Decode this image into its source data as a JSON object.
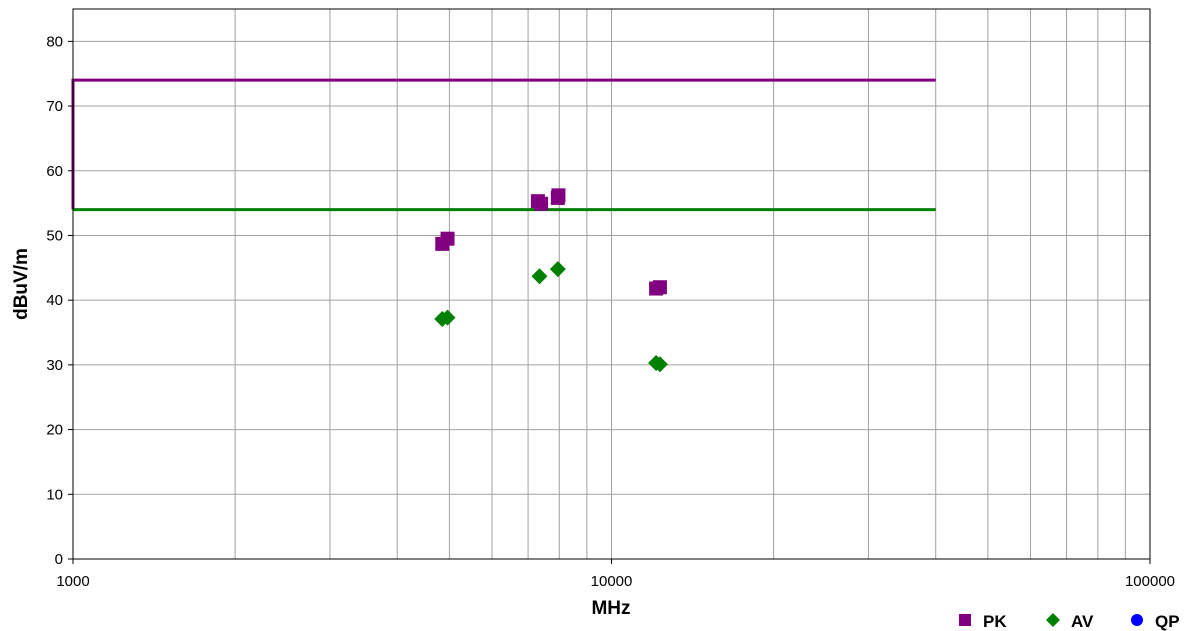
{
  "chart_data": {
    "type": "scatter",
    "title": "",
    "xlabel": "MHz",
    "ylabel": "dBuV/m",
    "x_scale": "log",
    "xlim": [
      1000,
      100000
    ],
    "ylim": [
      0,
      85
    ],
    "x_ticks": [
      1000,
      10000,
      100000
    ],
    "x_tick_labels": [
      "1000",
      "10000",
      "100000"
    ],
    "y_ticks": [
      0,
      10,
      20,
      30,
      40,
      50,
      60,
      70,
      80
    ],
    "y_tick_labels": [
      "0",
      "10",
      "20",
      "30",
      "40",
      "50",
      "60",
      "70",
      "80"
    ],
    "grid": true,
    "legend_position": "bottom-right",
    "limit_lines": [
      {
        "color": "#800080",
        "points": [
          [
            1000,
            54
          ],
          [
            1000,
            74
          ],
          [
            40000,
            74
          ]
        ]
      },
      {
        "color": "#008000",
        "points": [
          [
            1000,
            54
          ],
          [
            40000,
            54
          ]
        ]
      }
    ],
    "series": [
      {
        "name": "PK",
        "marker": "square",
        "color": "#800080",
        "x": [
          4850,
          4960,
          7300,
          7400,
          7950,
          7970,
          12100,
          12300
        ],
        "y": [
          48.7,
          49.5,
          55.3,
          54.9,
          55.8,
          56.2,
          41.8,
          42.0
        ]
      },
      {
        "name": "AV",
        "marker": "diamond",
        "color": "#008000",
        "x": [
          4850,
          4960,
          7350,
          7950,
          12100,
          12300
        ],
        "y": [
          37.1,
          37.3,
          43.7,
          44.8,
          30.3,
          30.1
        ]
      },
      {
        "name": "QP",
        "marker": "circle",
        "color": "#0000ff",
        "x": [],
        "y": []
      }
    ]
  }
}
